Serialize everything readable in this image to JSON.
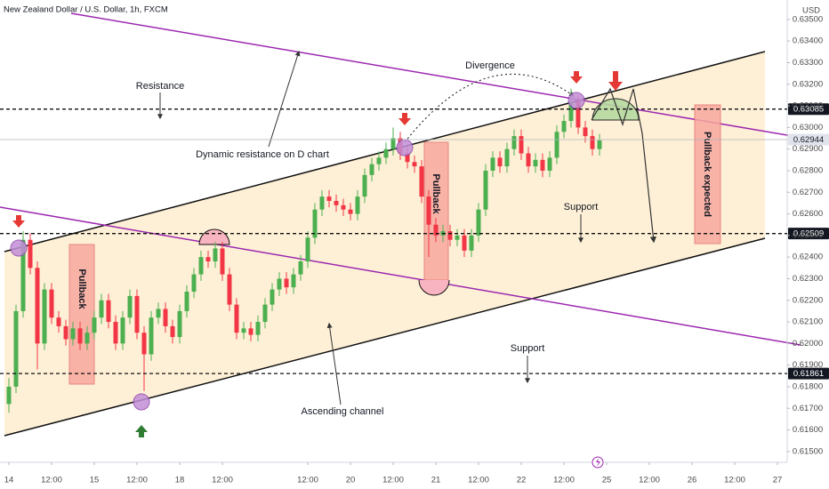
{
  "chart_data": {
    "type": "candlestick",
    "title": "New Zealand Dollar / U.S. Dollar, 1h, FXCM",
    "currency": "USD",
    "up_color": "#4caf50",
    "down_color": "#f23645",
    "xlim": [
      -2.5,
      218.75
    ],
    "ylim": [
      0.6145,
      0.6359
    ],
    "xticks": [
      {
        "value": 0,
        "label": "14"
      },
      {
        "value": 12,
        "label": "12:00"
      },
      {
        "value": 24,
        "label": "15"
      },
      {
        "value": 36,
        "label": "12:00"
      },
      {
        "value": 48,
        "label": "18"
      },
      {
        "value": 60,
        "label": "12:00"
      },
      {
        "value": 84,
        "label": "12:00"
      },
      {
        "value": 96,
        "label": "20"
      },
      {
        "value": 108,
        "label": "12:00"
      },
      {
        "value": 120,
        "label": "21"
      },
      {
        "value": 132,
        "label": "12:00"
      },
      {
        "value": 144,
        "label": "22"
      },
      {
        "value": 156,
        "label": "12:00"
      },
      {
        "value": 168,
        "label": "25"
      },
      {
        "value": 180,
        "label": "12:00"
      },
      {
        "value": 192,
        "label": "26"
      },
      {
        "value": 204,
        "label": "12:00"
      },
      {
        "value": 216,
        "label": "27"
      }
    ],
    "yticks": [
      {
        "value": 0.615,
        "label": "0.61500"
      },
      {
        "value": 0.616,
        "label": "0.61600"
      },
      {
        "value": 0.617,
        "label": "0.61700"
      },
      {
        "value": 0.618,
        "label": "0.61800"
      },
      {
        "value": 0.619,
        "label": "0.61900"
      },
      {
        "value": 0.62,
        "label": "0.62000"
      },
      {
        "value": 0.621,
        "label": "0.62100"
      },
      {
        "value": 0.622,
        "label": "0.62200"
      },
      {
        "value": 0.623,
        "label": "0.62300"
      },
      {
        "value": 0.624,
        "label": "0.62400"
      },
      {
        "value": 0.625,
        "label": "0.62500"
      },
      {
        "value": 0.626,
        "label": "0.62600"
      },
      {
        "value": 0.627,
        "label": "0.62700"
      },
      {
        "value": 0.628,
        "label": "0.62800"
      },
      {
        "value": 0.629,
        "label": "0.62900"
      },
      {
        "value": 0.63,
        "label": "0.63000"
      },
      {
        "value": 0.631,
        "label": "0.63100"
      },
      {
        "value": 0.632,
        "label": "0.63200"
      },
      {
        "value": 0.633,
        "label": "0.63300"
      },
      {
        "value": 0.634,
        "label": "0.63400"
      },
      {
        "value": 0.635,
        "label": "0.63500"
      }
    ],
    "levels": [
      0.63085,
      0.62509,
      0.61861
    ],
    "last_price": 0.62944,
    "x": [
      0,
      2,
      4,
      6,
      8,
      10,
      12,
      14,
      16,
      18,
      20,
      22,
      24,
      26,
      28,
      30,
      32,
      34,
      36,
      38,
      40,
      42,
      44,
      46,
      48,
      50,
      52,
      54,
      56,
      58,
      60,
      62,
      64,
      66,
      68,
      70,
      72,
      74,
      76,
      78,
      80,
      82,
      84,
      86,
      88,
      90,
      92,
      94,
      96,
      98,
      100,
      102,
      104,
      106,
      108,
      110,
      112,
      114,
      116,
      118,
      120,
      122,
      124,
      126,
      128,
      130,
      132,
      134,
      136,
      138,
      140,
      142,
      144,
      146,
      148,
      150,
      152,
      154,
      156,
      158,
      160,
      162,
      164,
      166
    ],
    "open": [
      0.6172,
      0.618,
      0.6215,
      0.6248,
      0.6235,
      0.62,
      0.6225,
      0.6212,
      0.6208,
      0.6202,
      0.6207,
      0.62,
      0.6205,
      0.6212,
      0.622,
      0.621,
      0.62,
      0.6212,
      0.6222,
      0.6205,
      0.6195,
      0.6212,
      0.6216,
      0.6208,
      0.6203,
      0.6215,
      0.6224,
      0.6232,
      0.624,
      0.6238,
      0.6244,
      0.6232,
      0.6218,
      0.6205,
      0.6207,
      0.6204,
      0.621,
      0.6218,
      0.6225,
      0.623,
      0.6226,
      0.6232,
      0.6238,
      0.6249,
      0.6262,
      0.6268,
      0.6266,
      0.6264,
      0.6262,
      0.626,
      0.6268,
      0.6278,
      0.6283,
      0.6286,
      0.629,
      0.6295,
      0.6288,
      0.6284,
      0.6282,
      0.6268,
      0.6255,
      0.625,
      0.6252,
      0.6248,
      0.625,
      0.6243,
      0.625,
      0.6262,
      0.628,
      0.6286,
      0.6282,
      0.629,
      0.6296,
      0.6288,
      0.6282,
      0.6285,
      0.628,
      0.6286,
      0.6298,
      0.6303,
      0.6312,
      0.63,
      0.6296,
      0.629
    ],
    "high": [
      0.6184,
      0.6218,
      0.6252,
      0.6251,
      0.6238,
      0.6228,
      0.6228,
      0.6215,
      0.6211,
      0.621,
      0.621,
      0.6208,
      0.6215,
      0.6223,
      0.6223,
      0.6213,
      0.6215,
      0.6225,
      0.6225,
      0.6208,
      0.6215,
      0.6219,
      0.6219,
      0.6211,
      0.6218,
      0.6227,
      0.6235,
      0.6243,
      0.6243,
      0.6247,
      0.6247,
      0.6235,
      0.6221,
      0.621,
      0.621,
      0.6213,
      0.6221,
      0.6228,
      0.6233,
      0.6233,
      0.6235,
      0.6241,
      0.6252,
      0.6265,
      0.6271,
      0.6271,
      0.6269,
      0.6267,
      0.6265,
      0.6271,
      0.6281,
      0.6286,
      0.6289,
      0.6293,
      0.63,
      0.6298,
      0.6291,
      0.6287,
      0.6285,
      0.6271,
      0.6258,
      0.6255,
      0.6255,
      0.6253,
      0.6253,
      0.6253,
      0.6265,
      0.6283,
      0.6289,
      0.6289,
      0.6293,
      0.6299,
      0.6299,
      0.6291,
      0.6288,
      0.6288,
      0.6289,
      0.6301,
      0.6306,
      0.6318,
      0.6315,
      0.6303,
      0.6299,
      0.6297
    ],
    "low": [
      0.6168,
      0.6177,
      0.6212,
      0.6232,
      0.6188,
      0.6197,
      0.6209,
      0.6205,
      0.6199,
      0.6199,
      0.6197,
      0.6197,
      0.6202,
      0.6209,
      0.6207,
      0.6197,
      0.6197,
      0.6209,
      0.6202,
      0.6178,
      0.6192,
      0.6209,
      0.6205,
      0.62,
      0.62,
      0.6212,
      0.6221,
      0.6229,
      0.6235,
      0.6235,
      0.6229,
      0.6215,
      0.6202,
      0.6202,
      0.6201,
      0.6201,
      0.6207,
      0.6215,
      0.6222,
      0.6223,
      0.6223,
      0.6229,
      0.6235,
      0.6246,
      0.6259,
      0.6263,
      0.6261,
      0.6259,
      0.6257,
      0.6257,
      0.6265,
      0.6275,
      0.628,
      0.6283,
      0.6287,
      0.6285,
      0.6281,
      0.6279,
      0.6265,
      0.624,
      0.6247,
      0.6247,
      0.6245,
      0.6245,
      0.624,
      0.624,
      0.6247,
      0.6259,
      0.6277,
      0.6279,
      0.6279,
      0.6287,
      0.6285,
      0.6279,
      0.6279,
      0.6277,
      0.6277,
      0.6283,
      0.6295,
      0.63,
      0.6297,
      0.6293,
      0.6287,
      0.6287
    ],
    "close": [
      0.618,
      0.6215,
      0.6248,
      0.6235,
      0.62,
      0.6225,
      0.6212,
      0.6208,
      0.6202,
      0.6207,
      0.62,
      0.6205,
      0.6212,
      0.622,
      0.621,
      0.62,
      0.6212,
      0.6222,
      0.6205,
      0.6195,
      0.6212,
      0.6216,
      0.6208,
      0.6203,
      0.6215,
      0.6224,
      0.6232,
      0.624,
      0.6238,
      0.6244,
      0.6232,
      0.6218,
      0.6205,
      0.6207,
      0.6204,
      0.621,
      0.6218,
      0.6225,
      0.623,
      0.6226,
      0.6232,
      0.6238,
      0.6249,
      0.6262,
      0.6268,
      0.6266,
      0.6264,
      0.6262,
      0.626,
      0.6268,
      0.6278,
      0.6283,
      0.6286,
      0.629,
      0.6295,
      0.6288,
      0.6284,
      0.6282,
      0.6268,
      0.6255,
      0.625,
      0.6252,
      0.6248,
      0.625,
      0.6243,
      0.625,
      0.6262,
      0.628,
      0.6286,
      0.6282,
      0.629,
      0.6296,
      0.6288,
      0.6282,
      0.6285,
      0.628,
      0.6286,
      0.6298,
      0.6303,
      0.6312,
      0.63,
      0.6296,
      0.629,
      0.6294
    ],
    "annotations": [
      "Resistance",
      "Dynamic resistance on D chart",
      "Divergence",
      "Pullback",
      "Pullback",
      "Pullback expected",
      "Support",
      "Support",
      "Ascending channel"
    ]
  }
}
